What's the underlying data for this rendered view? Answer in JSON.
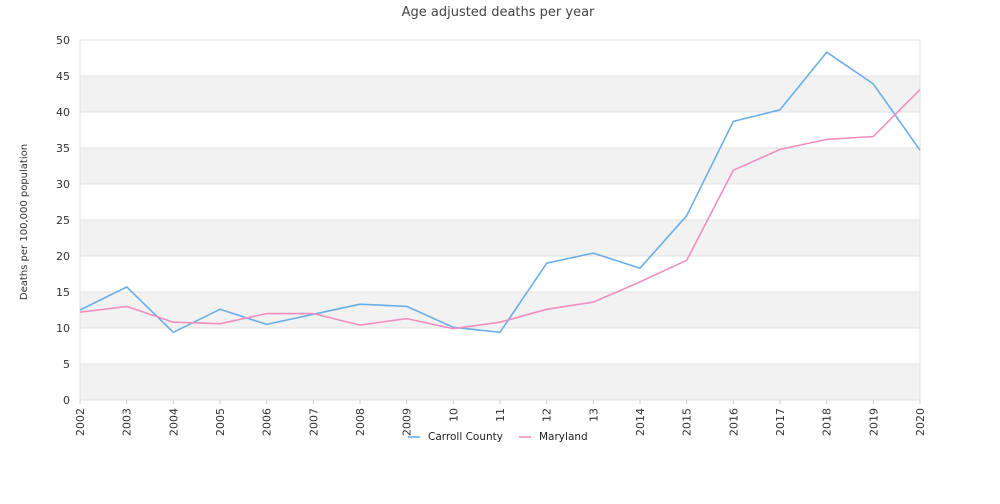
{
  "chart_data": {
    "type": "line",
    "title": "Age adjusted deaths per year",
    "xlabel": "",
    "ylabel": "Deaths per 100,000 population",
    "x": [
      "2002",
      "2003",
      "2004",
      "2005",
      "2006",
      "2007",
      "2008",
      "2009",
      "2010",
      "2011",
      "2012",
      "2013",
      "2014",
      "2015",
      "2016",
      "2017",
      "2018",
      "2019",
      "2020"
    ],
    "x_tick_labels": [
      "2002",
      "2003",
      "2004",
      "2005",
      "2006",
      "2007",
      "2008",
      "2009",
      "10",
      "11",
      "12",
      "13",
      "2014",
      "2015",
      "2016",
      "2017",
      "2018",
      "2019",
      "2020"
    ],
    "y_ticks": [
      0,
      5,
      10,
      15,
      20,
      25,
      30,
      35,
      40,
      45,
      50
    ],
    "ylim": [
      0,
      50
    ],
    "grid": true,
    "legend_position": "bottom",
    "series": [
      {
        "name": "Carroll County",
        "color": "#6aaee8",
        "values": [
          12.5,
          15.7,
          9.4,
          12.6,
          10.5,
          11.9,
          13.3,
          13.0,
          10.1,
          9.4,
          19.0,
          20.4,
          18.3,
          25.6,
          38.7,
          40.3,
          48.3,
          43.9,
          34.7
        ]
      },
      {
        "name": "Maryland",
        "color": "#f08fbf",
        "values": [
          12.2,
          13.0,
          10.8,
          10.6,
          12.0,
          12.0,
          10.4,
          11.3,
          9.9,
          10.8,
          12.6,
          13.6,
          16.4,
          19.4,
          31.9,
          34.8,
          36.2,
          36.6,
          43.1
        ]
      }
    ]
  }
}
